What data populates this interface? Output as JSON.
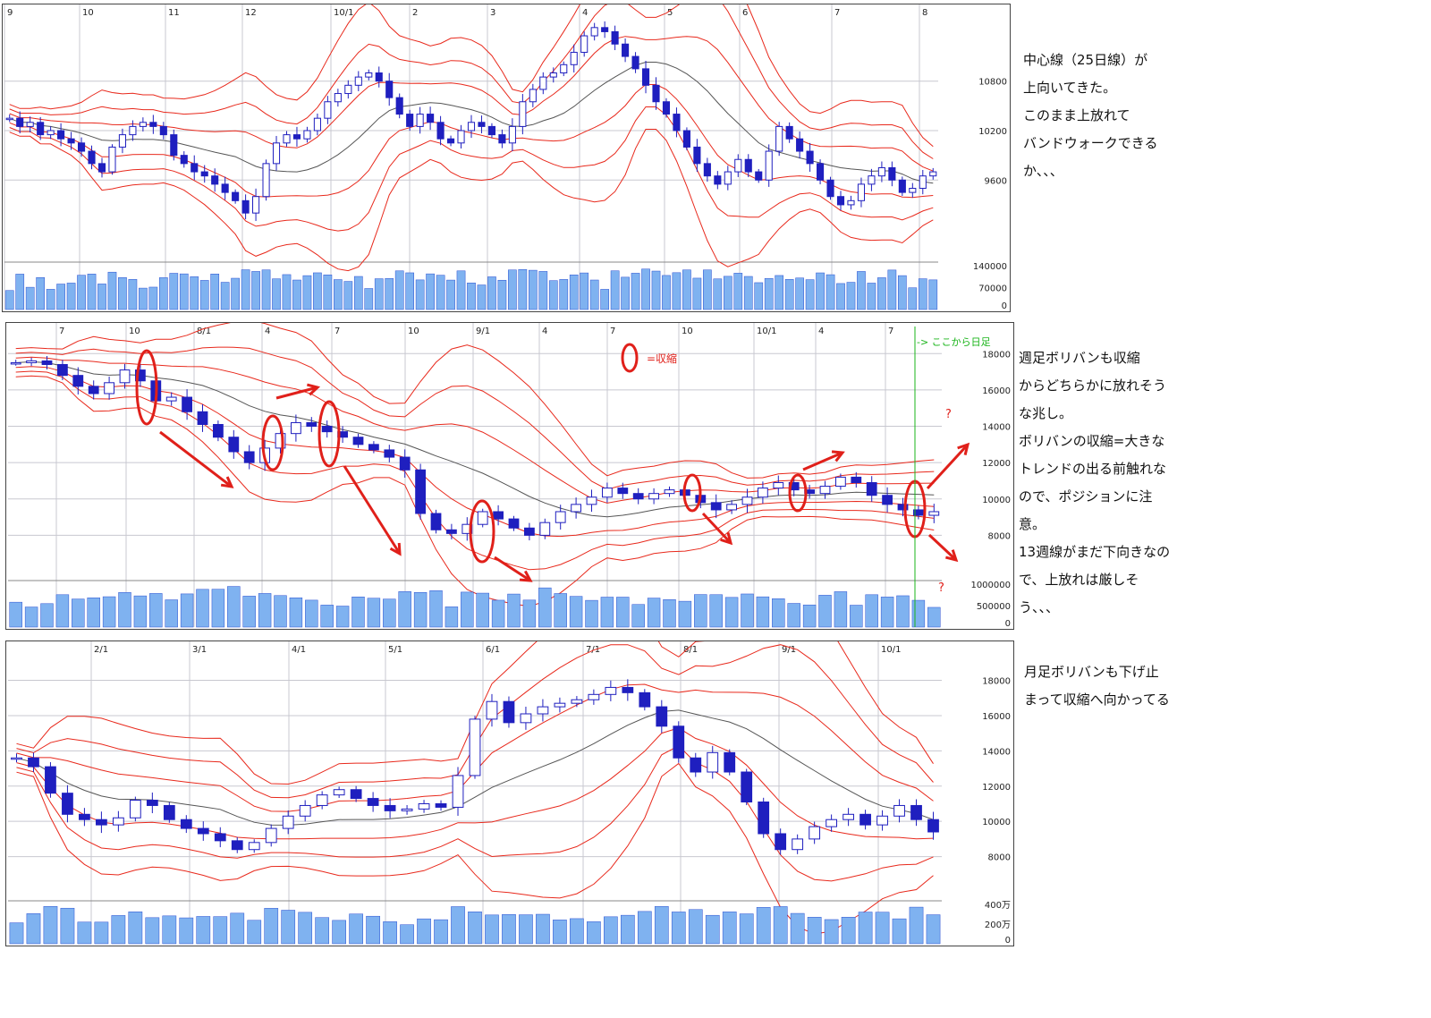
{
  "colors": {
    "band": "#e8291c",
    "mid": "#555555",
    "candle": "#1f1fbf",
    "volume": "#7fb2f0",
    "volume_edge": "#2b4fd1",
    "grid": "#c8c8d0",
    "annot": "#e0201a",
    "green": "#19b419"
  },
  "notes": {
    "n1": "中心線（25日線）が\n上向いてきた。\nこのまま上放れて\nバンドウォークできる\nか、、、",
    "n2": "週足ボリバンも収縮\nからどちらかに放れそう\nな兆し。\nボリバンの収縮=大きな\nトレンドの出る前触れな\nので、ポジションに注\n意。\n13週線がまだ下向きなの\nで、上放れは厳しそ\nう、、、",
    "n3": "月足ボリバンも下げ止\nまって収縮へ向かってる"
  },
  "legend_label": "=収縮",
  "switch_label": "-> ここから日足",
  "question_mark": "?",
  "chart_data": [
    {
      "type": "candlestick",
      "name": "daily",
      "x_ticks": [
        "9",
        "10",
        "11",
        "12",
        "10/1",
        "2",
        "3",
        "4",
        "5",
        "6",
        "7",
        "8"
      ],
      "price_ticks": [
        "10800",
        "10200",
        "9600"
      ],
      "volume_ticks": [
        "140000",
        "70000",
        "0"
      ],
      "ylim": [
        8800,
        11600
      ],
      "volume_lim": [
        0,
        170000
      ],
      "close": [
        10350,
        10250,
        10300,
        10150,
        10200,
        10100,
        10050,
        9950,
        9800,
        9700,
        10000,
        10150,
        10250,
        10300,
        10250,
        10150,
        9900,
        9800,
        9700,
        9650,
        9550,
        9450,
        9350,
        9200,
        9400,
        9800,
        10050,
        10150,
        10100,
        10200,
        10350,
        10550,
        10650,
        10750,
        10850,
        10900,
        10800,
        10600,
        10400,
        10250,
        10400,
        10300,
        10100,
        10050,
        10200,
        10300,
        10250,
        10150,
        10050,
        10250,
        10550,
        10700,
        10850,
        10900,
        11000,
        11150,
        11350,
        11450,
        11400,
        11250,
        11100,
        10950,
        10750,
        10550,
        10400,
        10200,
        10000,
        9800,
        9650,
        9550,
        9700,
        9850,
        9700,
        9600,
        9950,
        10250,
        10100,
        9950,
        9800,
        9600,
        9400,
        9300,
        9350,
        9550,
        9650,
        9750,
        9600,
        9450,
        9500,
        9650,
        9700
      ]
    },
    {
      "type": "candlestick",
      "name": "weekly",
      "x_ticks": [
        "7",
        "10",
        "8/1",
        "4",
        "7",
        "10",
        "9/1",
        "4",
        "7",
        "10",
        "10/1",
        "4",
        "7"
      ],
      "price_ticks": [
        "18000",
        "16000",
        "14000",
        "12000",
        "10000",
        "8000"
      ],
      "volume_ticks": [
        "1000000",
        "500000",
        "0"
      ],
      "ylim": [
        6000,
        19000
      ],
      "volume_lim": [
        0,
        1300000
      ],
      "close": [
        17500,
        17600,
        17400,
        16800,
        16200,
        15800,
        16400,
        17100,
        16500,
        15400,
        15600,
        14800,
        14100,
        13400,
        12600,
        12000,
        12800,
        13600,
        14200,
        14000,
        13700,
        13400,
        13000,
        12700,
        12300,
        11600,
        9200,
        8300,
        8100,
        8600,
        9300,
        8900,
        8400,
        8000,
        8700,
        9300,
        9700,
        10100,
        10600,
        10300,
        10000,
        10300,
        10500,
        10200,
        9800,
        9400,
        9700,
        10100,
        10600,
        10900,
        10500,
        10300,
        10700,
        11200,
        10900,
        10200,
        9700,
        9400,
        9100,
        9300
      ]
    },
    {
      "type": "candlestick",
      "name": "monthly",
      "x_ticks": [
        "2/1",
        "3/1",
        "4/1",
        "5/1",
        "6/1",
        "7/1",
        "8/1",
        "9/1",
        "10/1"
      ],
      "price_ticks": [
        "18000",
        "16000",
        "14000",
        "12000",
        "10000",
        "8000"
      ],
      "volume_ticks": [
        "400万",
        "200万",
        "0"
      ],
      "ylim": [
        6000,
        19500
      ],
      "volume_lim": [
        0,
        5000000
      ],
      "close": [
        13600,
        13100,
        11600,
        10400,
        10100,
        9800,
        10200,
        11200,
        10900,
        10100,
        9600,
        9300,
        8900,
        8400,
        8800,
        9600,
        10300,
        10900,
        11500,
        11800,
        11300,
        10900,
        10600,
        10700,
        11000,
        10800,
        12600,
        15800,
        16800,
        15600,
        16100,
        16500,
        16700,
        16900,
        17200,
        17600,
        17300,
        16500,
        15400,
        13600,
        12800,
        13900,
        12800,
        11100,
        9300,
        8400,
        9000,
        9700,
        10100,
        10400,
        9800,
        10300,
        10900,
        10100,
        9400
      ]
    }
  ]
}
